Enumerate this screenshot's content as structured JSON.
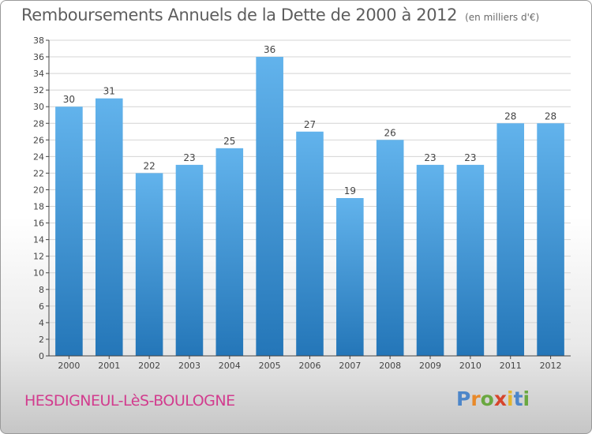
{
  "chart_data": {
    "type": "bar",
    "title": "Remboursements Annuels de la Dette de 2000 à 2012",
    "subtitle": "(en milliers d'€)",
    "categories": [
      "2000",
      "2001",
      "2002",
      "2003",
      "2004",
      "2005",
      "2006",
      "2007",
      "2008",
      "2009",
      "2010",
      "2011",
      "2012"
    ],
    "values": [
      30,
      31,
      22,
      23,
      25,
      36,
      27,
      19,
      26,
      23,
      23,
      28,
      28
    ],
    "ylim": [
      0,
      38
    ],
    "yticks": [
      0,
      2,
      4,
      6,
      8,
      10,
      12,
      14,
      16,
      18,
      20,
      22,
      24,
      26,
      28,
      30,
      32,
      34,
      36,
      38
    ],
    "grid": true,
    "xlabel": "",
    "ylabel": ""
  },
  "footer": {
    "commune": "HESDIGNEUL-LèS-BOULOGNE",
    "logo_letters": [
      "P",
      "r",
      "o",
      "x",
      "i",
      "t",
      "i"
    ]
  },
  "colors": {
    "bar_light": "#62b3ec",
    "bar_dark": "#2476b8",
    "grid": "#d4d4d4",
    "axis": "#444444",
    "logo": [
      "#4d86c9",
      "#e8892a",
      "#6aa840",
      "#d6452c",
      "#e4b52c",
      "#4d86c9",
      "#6aa840"
    ]
  }
}
